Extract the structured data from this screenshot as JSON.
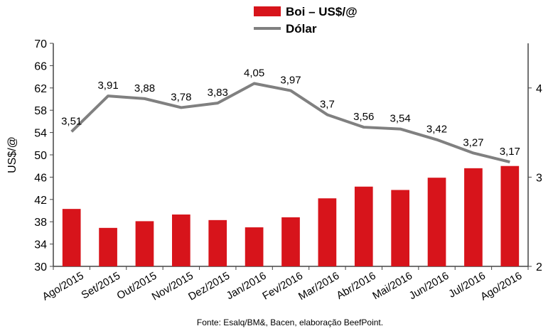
{
  "chart_data": {
    "type": "bar+line",
    "categories": [
      "Ago/2015",
      "Set/2015",
      "Out/2015",
      "Nov/2015",
      "Dez/2015",
      "Jan/2016",
      "Fev/2016",
      "Mar/2016",
      "Abr/2016",
      "Mai/2016",
      "Jun/2016",
      "Jul/2016",
      "Ago/2016"
    ],
    "series": [
      {
        "name": "Boi – US$/@",
        "type": "bar",
        "axis": "left",
        "color": "#d7141b",
        "values": [
          40.3,
          36.9,
          38.1,
          39.3,
          38.3,
          37.0,
          38.8,
          42.2,
          44.3,
          43.7,
          45.9,
          47.6,
          48.0
        ]
      },
      {
        "name": "Dólar",
        "type": "line",
        "axis": "right",
        "color": "#808080",
        "values": [
          3.51,
          3.91,
          3.88,
          3.78,
          3.83,
          4.05,
          3.97,
          3.7,
          3.56,
          3.54,
          3.42,
          3.27,
          3.17
        ],
        "labels": [
          "3,51",
          "3,91",
          "3,88",
          "3,78",
          "3,83",
          "4,05",
          "3,97",
          "3,7",
          "3,56",
          "3,54",
          "3,42",
          "3,27",
          "3,17"
        ]
      }
    ],
    "y_left": {
      "label": "US$/@",
      "min": 30,
      "max": 70,
      "ticks": [
        "30",
        "34",
        "38",
        "42",
        "46",
        "50",
        "54",
        "58",
        "62",
        "66",
        "70"
      ]
    },
    "y_right": {
      "min": 2,
      "max": 4.5,
      "ticks": [
        "2",
        "3",
        "4"
      ]
    },
    "grid": false,
    "legend": "top-center",
    "source": "Fonte: Esalq/BM&, Bacen, elaboração BeefPoint."
  }
}
